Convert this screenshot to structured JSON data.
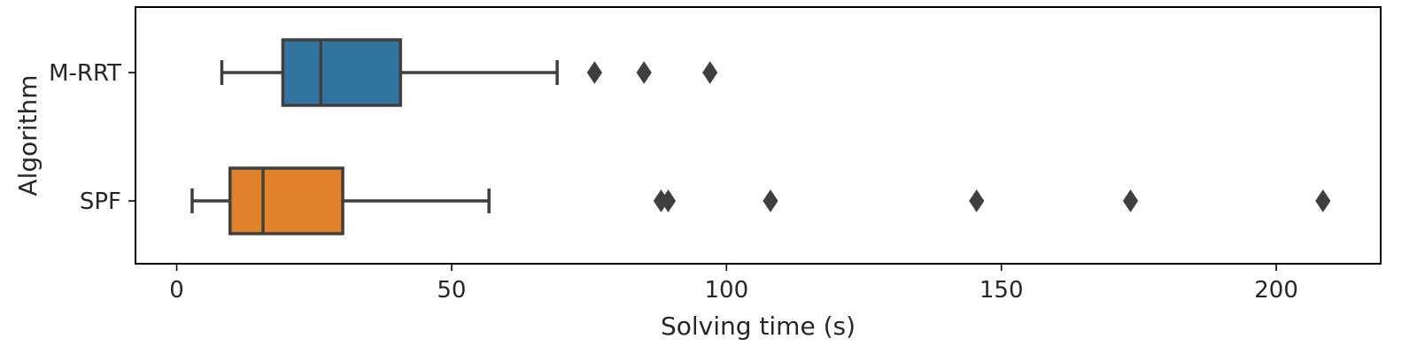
{
  "chart_data": {
    "type": "boxplot",
    "orientation": "horizontal",
    "title": "",
    "xlabel": "Solving time (s)",
    "ylabel": "Algorithm",
    "xlim": [
      -7.5,
      219
    ],
    "xticks": [
      0,
      50,
      100,
      150,
      200
    ],
    "grid": false,
    "categories": [
      "M-RRT",
      "SPF"
    ],
    "series": [
      {
        "category": "M-RRT",
        "color": "#3274a1",
        "whisker_low": 8.2,
        "q1": 19.3,
        "median": 26.2,
        "q3": 40.7,
        "whisker_high": 69.2,
        "outliers": [
          76.0,
          85.0,
          97.0
        ]
      },
      {
        "category": "SPF",
        "color": "#e1812c",
        "whisker_low": 2.8,
        "q1": 9.7,
        "median": 15.7,
        "q3": 30.2,
        "whisker_high": 56.8,
        "outliers": [
          88.1,
          89.4,
          108.0,
          145.5,
          173.5,
          208.5
        ]
      }
    ],
    "line_color": "#3f3f3f"
  }
}
